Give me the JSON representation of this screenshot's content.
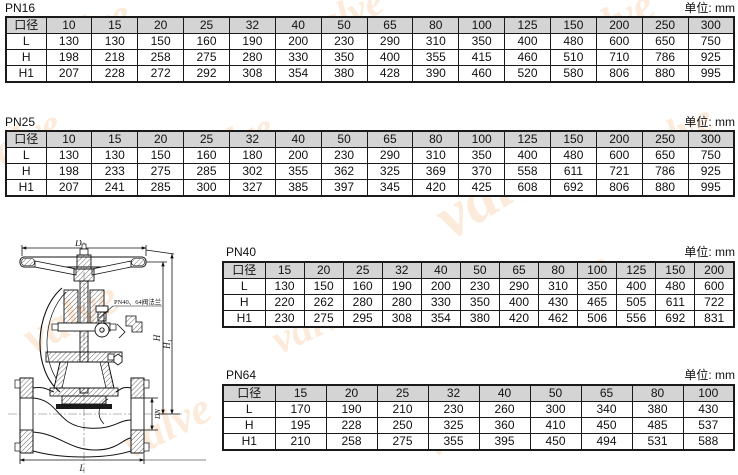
{
  "tables": [
    {
      "title": "PN16",
      "unit": "单位: mm",
      "header": [
        "口径",
        "10",
        "15",
        "20",
        "25",
        "32",
        "40",
        "50",
        "65",
        "80",
        "100",
        "125",
        "150",
        "200",
        "250",
        "300"
      ],
      "rows": [
        {
          "label": "L",
          "values": [
            "130",
            "130",
            "150",
            "160",
            "190",
            "200",
            "230",
            "290",
            "310",
            "350",
            "400",
            "480",
            "600",
            "650",
            "750"
          ]
        },
        {
          "label": "H",
          "values": [
            "198",
            "218",
            "258",
            "275",
            "280",
            "330",
            "350",
            "400",
            "355",
            "415",
            "460",
            "510",
            "710",
            "786",
            "925"
          ]
        },
        {
          "label": "H1",
          "values": [
            "207",
            "228",
            "272",
            "292",
            "308",
            "354",
            "380",
            "428",
            "390",
            "460",
            "520",
            "580",
            "806",
            "880",
            "995"
          ]
        }
      ]
    },
    {
      "title": "PN25",
      "unit": "单位: mm",
      "header": [
        "口径",
        "10",
        "15",
        "20",
        "25",
        "32",
        "40",
        "50",
        "65",
        "80",
        "100",
        "125",
        "150",
        "200",
        "250",
        "300"
      ],
      "rows": [
        {
          "label": "L",
          "values": [
            "130",
            "130",
            "150",
            "160",
            "180",
            "200",
            "230",
            "290",
            "310",
            "350",
            "400",
            "480",
            "600",
            "650",
            "750"
          ]
        },
        {
          "label": "H",
          "values": [
            "198",
            "233",
            "275",
            "285",
            "302",
            "355",
            "362",
            "325",
            "369",
            "370",
            "558",
            "611",
            "721",
            "786",
            "925"
          ]
        },
        {
          "label": "H1",
          "values": [
            "207",
            "241",
            "285",
            "300",
            "327",
            "385",
            "397",
            "345",
            "420",
            "425",
            "608",
            "692",
            "806",
            "880",
            "995"
          ]
        }
      ]
    },
    {
      "title": "PN40",
      "unit": "单位: mm",
      "header": [
        "口径",
        "15",
        "20",
        "25",
        "32",
        "40",
        "50",
        "65",
        "80",
        "100",
        "125",
        "150",
        "200"
      ],
      "rows": [
        {
          "label": "L",
          "values": [
            "130",
            "150",
            "160",
            "190",
            "200",
            "230",
            "290",
            "310",
            "350",
            "400",
            "480",
            "600"
          ]
        },
        {
          "label": "H",
          "values": [
            "220",
            "262",
            "280",
            "280",
            "330",
            "350",
            "400",
            "430",
            "465",
            "505",
            "611",
            "722"
          ]
        },
        {
          "label": "H1",
          "values": [
            "230",
            "275",
            "295",
            "308",
            "354",
            "380",
            "420",
            "462",
            "506",
            "556",
            "692",
            "831"
          ]
        }
      ]
    },
    {
      "title": "PN64",
      "unit": "单位: mm",
      "header": [
        "口径",
        "15",
        "20",
        "25",
        "32",
        "40",
        "50",
        "65",
        "80",
        "100"
      ],
      "rows": [
        {
          "label": "L",
          "values": [
            "170",
            "190",
            "210",
            "230",
            "260",
            "300",
            "340",
            "380",
            "430"
          ]
        },
        {
          "label": "H",
          "values": [
            "195",
            "228",
            "250",
            "325",
            "360",
            "410",
            "450",
            "485",
            "537"
          ]
        },
        {
          "label": "H1",
          "values": [
            "210",
            "258",
            "275",
            "355",
            "395",
            "450",
            "494",
            "531",
            "588"
          ]
        }
      ]
    }
  ],
  "drawing": {
    "dim_d0": "D₀",
    "dim_h": "H",
    "dim_h1": "H₁",
    "dim_dn": "DN",
    "dim_l": "L",
    "flange_note": "PN40、64阀法兰"
  },
  "watermark": {
    "text": "valve",
    "color": "#f2a45a"
  }
}
